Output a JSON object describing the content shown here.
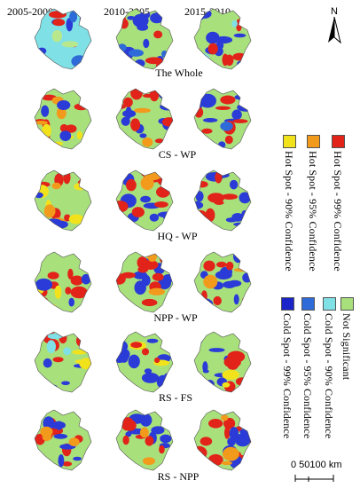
{
  "columns": [
    "2005-2000",
    "2010-2005",
    "2015-2010"
  ],
  "rows": [
    {
      "label": "The Whole",
      "maps": [
        {
          "base": "#7fe0e6",
          "spots": [
            [
              "#2a3bd8",
              5
            ],
            [
              "#e2231a",
              4
            ],
            [
              "#b9e88c",
              3
            ],
            [
              "#2e6bd8",
              2
            ]
          ]
        },
        {
          "base": "#a8e07c",
          "spots": [
            [
              "#2a3bd8",
              10
            ],
            [
              "#e2231a",
              6
            ],
            [
              "#2e6bd8",
              3
            ]
          ]
        },
        {
          "base": "#a8e07c",
          "spots": [
            [
              "#2a3bd8",
              11
            ],
            [
              "#e2231a",
              5
            ],
            [
              "#7fe0e6",
              2
            ]
          ]
        }
      ]
    },
    {
      "label": "CS - WP",
      "maps": [
        {
          "base": "#a8e07c",
          "spots": [
            [
              "#e2231a",
              7
            ],
            [
              "#f2e21b",
              4
            ],
            [
              "#f29a1b",
              3
            ],
            [
              "#2a3bd8",
              3
            ]
          ]
        },
        {
          "base": "#a8e07c",
          "spots": [
            [
              "#2a3bd8",
              9
            ],
            [
              "#e2231a",
              10
            ],
            [
              "#f29a1b",
              2
            ]
          ]
        },
        {
          "base": "#a8e07c",
          "spots": [
            [
              "#2a3bd8",
              9
            ],
            [
              "#e2231a",
              7
            ],
            [
              "#2e6bd8",
              2
            ]
          ]
        }
      ]
    },
    {
      "label": "HQ - WP",
      "maps": [
        {
          "base": "#a8e07c",
          "spots": [
            [
              "#e2231a",
              7
            ],
            [
              "#f2e21b",
              4
            ],
            [
              "#f29a1b",
              3
            ],
            [
              "#2a3bd8",
              3
            ]
          ]
        },
        {
          "base": "#a8e07c",
          "spots": [
            [
              "#2a3bd8",
              9
            ],
            [
              "#e2231a",
              10
            ],
            [
              "#f29a1b",
              2
            ]
          ]
        },
        {
          "base": "#a8e07c",
          "spots": [
            [
              "#2a3bd8",
              10
            ],
            [
              "#e2231a",
              8
            ]
          ]
        }
      ]
    },
    {
      "label": "NPP - WP",
      "maps": [
        {
          "base": "#a8e07c",
          "spots": [
            [
              "#e2231a",
              9
            ],
            [
              "#f2e21b",
              3
            ],
            [
              "#2a3bd8",
              4
            ]
          ]
        },
        {
          "base": "#a8e07c",
          "spots": [
            [
              "#2a3bd8",
              8
            ],
            [
              "#e2231a",
              10
            ],
            [
              "#f29a1b",
              2
            ]
          ]
        },
        {
          "base": "#a8e07c",
          "spots": [
            [
              "#2a3bd8",
              10
            ],
            [
              "#e2231a",
              6
            ],
            [
              "#f29a1b",
              2
            ]
          ]
        }
      ]
    },
    {
      "label": "RS - FS",
      "maps": [
        {
          "base": "#a8e07c",
          "spots": [
            [
              "#2a3bd8",
              6
            ],
            [
              "#e2231a",
              6
            ],
            [
              "#f2e21b",
              4
            ],
            [
              "#7fe0e6",
              3
            ]
          ]
        },
        {
          "base": "#a8e07c",
          "spots": [
            [
              "#2a3bd8",
              12
            ],
            [
              "#f2e21b",
              3
            ],
            [
              "#e2231a",
              3
            ]
          ]
        },
        {
          "base": "#a8e07c",
          "spots": [
            [
              "#2a3bd8",
              10
            ],
            [
              "#e2231a",
              7
            ],
            [
              "#f2e21b",
              3
            ]
          ]
        }
      ]
    },
    {
      "label": "RS - NPP",
      "maps": [
        {
          "base": "#a8e07c",
          "spots": [
            [
              "#e2231a",
              8
            ],
            [
              "#2a3bd8",
              7
            ],
            [
              "#f29a1b",
              3
            ]
          ]
        },
        {
          "base": "#a8e07c",
          "spots": [
            [
              "#2a3bd8",
              9
            ],
            [
              "#e2231a",
              8
            ],
            [
              "#f29a1b",
              2
            ]
          ]
        },
        {
          "base": "#a8e07c",
          "spots": [
            [
              "#e2231a",
              10
            ],
            [
              "#2a3bd8",
              8
            ],
            [
              "#f29a1b",
              3
            ]
          ]
        }
      ]
    }
  ],
  "legend_hot": [
    {
      "label": "Hot Spot - 99% Confidence",
      "color": "#e2231a"
    },
    {
      "label": "Hot Spot - 95% Confidence",
      "color": "#f29a1b"
    },
    {
      "label": "Hot Spot - 90% Confidence",
      "color": "#f2e21b"
    }
  ],
  "legend_cold": [
    {
      "label": "Not Significant",
      "color": "#a8e07c"
    },
    {
      "label": "Cold Spot - 90% Confidence",
      "color": "#7fe0e6"
    },
    {
      "label": "Cold Spot - 95% Confidence",
      "color": "#2e6bd8"
    },
    {
      "label": "Cold Spot - 99% Confidence",
      "color": "#1a24c8"
    }
  ],
  "north_label": "N",
  "scale_label": "0  50100 km"
}
